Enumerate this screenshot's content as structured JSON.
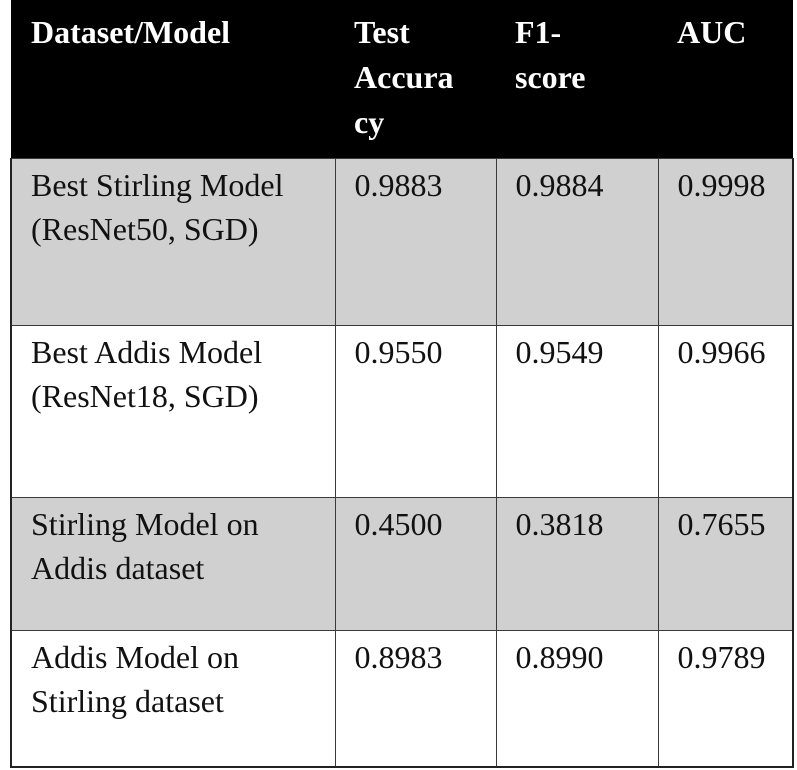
{
  "table": {
    "headers": [
      "Dataset/Model",
      "Test Accuracy",
      "F1-score",
      "AUC"
    ],
    "header_display": {
      "c0": "Dataset/Model",
      "c1_line1": "Test",
      "c1_line2": "Accura",
      "c1_line3": "cy",
      "c2_line1": "F1-",
      "c2_line2": "score",
      "c3": "AUC"
    },
    "rows": [
      {
        "model_line1": "Best Stirling Model",
        "model_line2": "(ResNet50, SGD)",
        "test_accuracy": "0.9883",
        "f1_score": "0.9884",
        "auc": "0.9998"
      },
      {
        "model_line1": "Best Addis Model",
        "model_line2": "(ResNet18, SGD)",
        "test_accuracy": "0.9550",
        "f1_score": "0.9549",
        "auc": "0.9966"
      },
      {
        "model_line1": "Stirling Model on",
        "model_line2": "Addis dataset",
        "test_accuracy": "0.4500",
        "f1_score": "0.3818",
        "auc": "0.7655"
      },
      {
        "model_line1": "Addis Model on",
        "model_line2": "Stirling dataset",
        "test_accuracy": "0.8983",
        "f1_score": "0.8990",
        "auc": "0.9789"
      }
    ]
  },
  "colors": {
    "header_bg": "#000000",
    "header_text": "#ffffff",
    "shaded_row": "#d0d0d0",
    "plain_row": "#ffffff",
    "border": "#3a3a3a"
  }
}
